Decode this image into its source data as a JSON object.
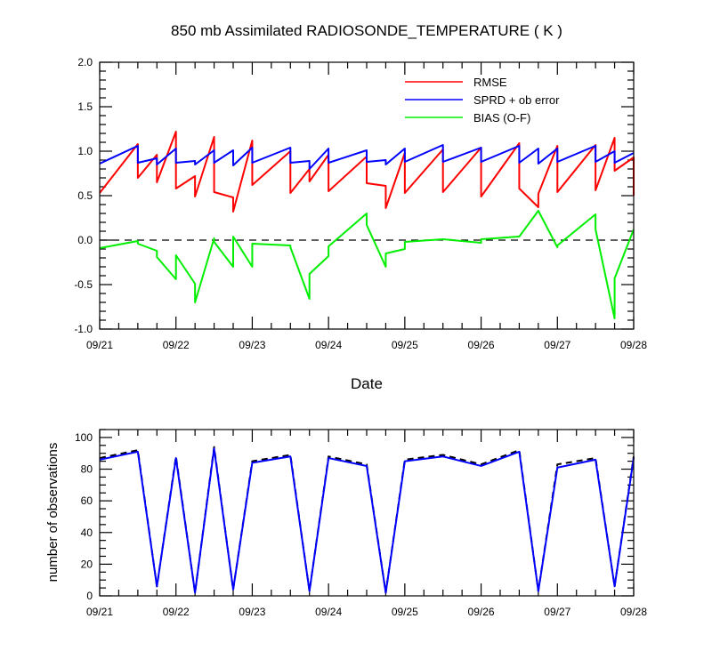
{
  "chart_data": [
    {
      "type": "line",
      "title": "850 mb Assimilated RADIOSONDE_TEMPERATURE ( K )",
      "xlabel": "Date",
      "ylabel": "",
      "xlim": [
        0,
        7
      ],
      "ylim": [
        -1.0,
        2.0
      ],
      "x_tick_labels": [
        "09/21",
        "09/22",
        "09/23",
        "09/24",
        "09/25",
        "09/26",
        "09/27",
        "09/28"
      ],
      "y_tick_labels": [
        "-1.0",
        "-0.5",
        "0.0",
        "0.5",
        "1.0",
        "1.5",
        "2.0"
      ],
      "y_ticks": [
        -1.0,
        -0.5,
        0.0,
        0.5,
        1.0,
        1.5,
        2.0
      ],
      "reference_line": 0.0,
      "legend_position": "top-right",
      "series": [
        {
          "name": "RMSE",
          "color": "#ff0000",
          "points": [
            [
              0,
              0.53
            ],
            [
              0.5,
              1.08
            ],
            [
              0.5,
              0.7
            ],
            [
              0.75,
              0.96
            ],
            [
              0.75,
              0.65
            ],
            [
              1.0,
              1.22
            ],
            [
              1.0,
              0.58
            ],
            [
              1.25,
              0.72
            ],
            [
              1.25,
              0.49
            ],
            [
              1.5,
              1.16
            ],
            [
              1.5,
              0.54
            ],
            [
              1.75,
              0.48
            ],
            [
              1.75,
              0.32
            ],
            [
              2.0,
              1.12
            ],
            [
              2.0,
              0.62
            ],
            [
              2.5,
              1.0
            ],
            [
              2.5,
              0.53
            ],
            [
              2.75,
              0.8
            ],
            [
              2.75,
              0.66
            ],
            [
              3.0,
              0.96
            ],
            [
              3.0,
              0.55
            ],
            [
              3.5,
              0.94
            ],
            [
              3.5,
              0.64
            ],
            [
              3.75,
              0.61
            ],
            [
              3.75,
              0.36
            ],
            [
              4.0,
              0.98
            ],
            [
              4.0,
              0.53
            ],
            [
              4.5,
              1.02
            ],
            [
              4.5,
              0.54
            ],
            [
              5.0,
              1.04
            ],
            [
              5.0,
              0.49
            ],
            [
              5.5,
              1.09
            ],
            [
              5.5,
              0.58
            ],
            [
              5.75,
              0.37
            ],
            [
              5.75,
              0.52
            ],
            [
              6.0,
              1.06
            ],
            [
              6.0,
              0.54
            ],
            [
              6.5,
              1.07
            ],
            [
              6.5,
              0.56
            ],
            [
              6.75,
              1.15
            ],
            [
              6.75,
              0.78
            ],
            [
              7.0,
              0.93
            ],
            [
              7.0,
              0.5
            ]
          ]
        },
        {
          "name": "SPRD + ob error",
          "color": "#0000ff",
          "points": [
            [
              0,
              0.86
            ],
            [
              0.5,
              1.06
            ],
            [
              0.5,
              0.87
            ],
            [
              0.75,
              0.92
            ],
            [
              0.75,
              0.85
            ],
            [
              1.0,
              1.03
            ],
            [
              1.0,
              0.87
            ],
            [
              1.25,
              0.89
            ],
            [
              1.25,
              0.85
            ],
            [
              1.5,
              1.01
            ],
            [
              1.5,
              0.87
            ],
            [
              1.75,
              1.01
            ],
            [
              1.75,
              0.84
            ],
            [
              2.0,
              1.04
            ],
            [
              2.0,
              0.87
            ],
            [
              2.5,
              1.04
            ],
            [
              2.5,
              0.87
            ],
            [
              2.75,
              0.89
            ],
            [
              2.75,
              0.8
            ],
            [
              3.0,
              1.03
            ],
            [
              3.0,
              0.87
            ],
            [
              3.5,
              1.01
            ],
            [
              3.5,
              0.88
            ],
            [
              3.75,
              0.9
            ],
            [
              3.75,
              0.85
            ],
            [
              4.0,
              1.03
            ],
            [
              4.0,
              0.88
            ],
            [
              4.5,
              1.07
            ],
            [
              4.5,
              0.88
            ],
            [
              5.0,
              1.04
            ],
            [
              5.0,
              0.88
            ],
            [
              5.5,
              1.06
            ],
            [
              5.5,
              0.87
            ],
            [
              5.75,
              1.03
            ],
            [
              5.75,
              0.86
            ],
            [
              6.0,
              1.03
            ],
            [
              6.0,
              0.88
            ],
            [
              6.5,
              1.06
            ],
            [
              6.5,
              0.88
            ],
            [
              6.75,
              1.0
            ],
            [
              6.75,
              0.87
            ],
            [
              7.0,
              0.98
            ]
          ]
        },
        {
          "name": "BIAS (O-F)",
          "color": "#00ee00",
          "points": [
            [
              0,
              -0.09
            ],
            [
              0.5,
              -0.01
            ],
            [
              0.5,
              -0.04
            ],
            [
              0.75,
              -0.12
            ],
            [
              0.75,
              -0.19
            ],
            [
              1.0,
              -0.44
            ],
            [
              1.0,
              -0.17
            ],
            [
              1.25,
              -0.49
            ],
            [
              1.25,
              -0.7
            ],
            [
              1.5,
              0.02
            ],
            [
              1.5,
              -0.02
            ],
            [
              1.75,
              -0.3
            ],
            [
              1.75,
              0.04
            ],
            [
              2.0,
              -0.3
            ],
            [
              2.0,
              -0.04
            ],
            [
              2.5,
              -0.06
            ],
            [
              2.5,
              -0.08
            ],
            [
              2.75,
              -0.66
            ],
            [
              2.75,
              -0.38
            ],
            [
              3.0,
              -0.18
            ],
            [
              3.0,
              -0.07
            ],
            [
              3.5,
              0.3
            ],
            [
              3.5,
              0.17
            ],
            [
              3.75,
              -0.3
            ],
            [
              3.75,
              -0.15
            ],
            [
              4.0,
              -0.1
            ],
            [
              4.0,
              -0.02
            ],
            [
              4.5,
              0.01
            ],
            [
              5.0,
              -0.03
            ],
            [
              5.0,
              0.01
            ],
            [
              5.5,
              0.04
            ],
            [
              5.5,
              0.04
            ],
            [
              5.75,
              0.33
            ],
            [
              6.0,
              -0.08
            ],
            [
              6.0,
              -0.06
            ],
            [
              6.5,
              0.29
            ],
            [
              6.5,
              0.12
            ],
            [
              6.75,
              -0.88
            ],
            [
              6.75,
              -0.43
            ],
            [
              7.0,
              0.12
            ]
          ]
        }
      ]
    },
    {
      "type": "line",
      "title": "",
      "xlabel": "",
      "ylabel": "number of observations",
      "xlim": [
        0,
        7
      ],
      "ylim": [
        0,
        105
      ],
      "x_tick_labels": [
        "09/21",
        "09/22",
        "09/23",
        "09/24",
        "09/25",
        "09/26",
        "09/27",
        "09/28"
      ],
      "y_tick_labels": [
        "0",
        "20",
        "40",
        "60",
        "80",
        "100"
      ],
      "y_ticks": [
        0,
        20,
        40,
        60,
        80,
        100
      ],
      "series": [
        {
          "line_style": "dashed",
          "color": "#000000",
          "points": [
            [
              0,
              87
            ],
            [
              0.5,
              92
            ],
            [
              0.75,
              6
            ],
            [
              1.0,
              88
            ],
            [
              1.25,
              2
            ],
            [
              1.5,
              94
            ],
            [
              1.75,
              4
            ],
            [
              2.0,
              85
            ],
            [
              2.5,
              89
            ],
            [
              2.75,
              3
            ],
            [
              3.0,
              88
            ],
            [
              3.5,
              83
            ],
            [
              3.75,
              2
            ],
            [
              4.0,
              86
            ],
            [
              4.5,
              89
            ],
            [
              5.0,
              83
            ],
            [
              5.5,
              92
            ],
            [
              5.75,
              3
            ],
            [
              6.0,
              83
            ],
            [
              6.5,
              87
            ],
            [
              6.75,
              6
            ],
            [
              7.0,
              88
            ]
          ]
        },
        {
          "line_style": "solid",
          "color": "#0000ff",
          "points": [
            [
              0,
              86
            ],
            [
              0.5,
              91
            ],
            [
              0.75,
              6
            ],
            [
              1.0,
              87
            ],
            [
              1.25,
              2
            ],
            [
              1.5,
              93
            ],
            [
              1.75,
              4
            ],
            [
              2.0,
              84
            ],
            [
              2.5,
              88
            ],
            [
              2.75,
              3
            ],
            [
              3.0,
              87
            ],
            [
              3.5,
              82
            ],
            [
              3.75,
              2
            ],
            [
              4.0,
              85
            ],
            [
              4.5,
              88
            ],
            [
              5.0,
              82
            ],
            [
              5.5,
              91
            ],
            [
              5.75,
              3
            ],
            [
              6.0,
              81
            ],
            [
              6.5,
              86
            ],
            [
              6.75,
              6
            ],
            [
              7.0,
              87
            ]
          ]
        }
      ]
    }
  ]
}
